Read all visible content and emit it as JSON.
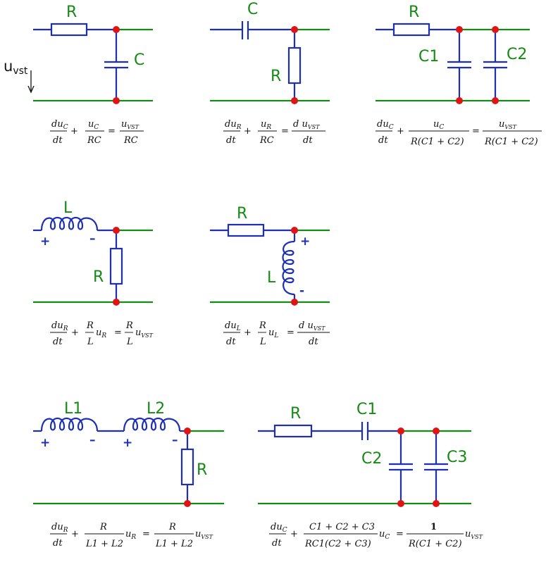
{
  "colors": {
    "wire_blue": "#1c2fb5",
    "wire_green": "#148a14",
    "label_green": "#158a15",
    "node_red": "#e01414"
  },
  "c1": {
    "R": "R",
    "C": "C",
    "input": "u",
    "input_sub": "vst",
    "eq": {
      "t1n": "du",
      "t1ns": "C",
      "t1d": "dt",
      "op1": "+",
      "t2n": "u",
      "t2ns": "C",
      "t2d": "RC",
      "eqs": "=",
      "t3n": "u",
      "t3ns": "VST",
      "t3d": "RC"
    }
  },
  "c2": {
    "C": "C",
    "R": "R",
    "eq": {
      "t1n": "du",
      "t1ns": "R",
      "t1d": "dt",
      "op1": "+",
      "t2n": "u",
      "t2ns": "R",
      "t2d": "RC",
      "eqs": "=",
      "t3n": "d u",
      "t3ns": "VST",
      "t3d": "dt"
    }
  },
  "c3": {
    "R": "R",
    "C1": "C1",
    "C2": "C2",
    "eq": {
      "t1n": "du",
      "t1ns": "C",
      "t1d": "dt",
      "op1": "+",
      "t2n": "u",
      "t2ns": "C",
      "t2d": "R(C1 + C2)",
      "eqs": "=",
      "t3n": "u",
      "t3ns": "VST",
      "t3d": "R(C1 + C2)"
    }
  },
  "c4": {
    "L": "L",
    "R": "R",
    "plus": "+",
    "minus": "–",
    "eq": {
      "t1n": "du",
      "t1ns": "R",
      "t1d": "dt",
      "op1": "+",
      "t2n": "R",
      "t2d": "L",
      "t2u": "u",
      "t2us": "R",
      "eqs": "=",
      "t3n": "R",
      "t3d": "L",
      "t3u": "u",
      "t3us": "VST"
    }
  },
  "c5": {
    "R": "R",
    "L": "L",
    "plus": "+",
    "minus": "-",
    "eq": {
      "t1n": "du",
      "t1ns": "L",
      "t1d": "dt",
      "op1": "+",
      "t2n": "R",
      "t2d": "L",
      "t2u": "u",
      "t2us": "L",
      "eqs": "=",
      "t3n": "d u",
      "t3ns": "VST",
      "t3d": "dt"
    }
  },
  "c6": {
    "L1": "L1",
    "L2": "L2",
    "R": "R",
    "plus": "+",
    "minus": "–",
    "eq": {
      "t1n": "du",
      "t1ns": "R",
      "t1d": "dt",
      "op1": "+",
      "t2n": "R",
      "t2d": "L1 + L2",
      "t2u": "u",
      "t2us": "R",
      "eqs": "=",
      "t3n": "R",
      "t3d": "L1 + L2",
      "t3u": "u",
      "t3us": "VST"
    }
  },
  "c7": {
    "R": "R",
    "C1": "C1",
    "C2": "C2",
    "C3": "C3",
    "eq": {
      "t1n": "du",
      "t1ns": "C",
      "t1d": "dt",
      "op1": "+",
      "t2n": "C1 + C2 + C3",
      "t2d": "RC1(C2 + C3)",
      "t2u": "u",
      "t2us": "C",
      "eqs": "=",
      "t3n": "1",
      "t3d": "R(C1 + C2)",
      "t3u": "u",
      "t3us": "VST"
    }
  }
}
